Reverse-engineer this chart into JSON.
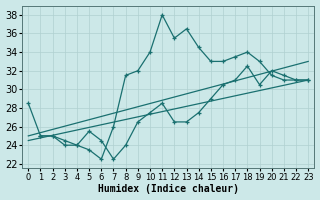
{
  "xlabel": "Humidex (Indice chaleur)",
  "xlim": [
    -0.5,
    23.5
  ],
  "ylim": [
    21.5,
    39.0
  ],
  "yticks": [
    22,
    24,
    26,
    28,
    30,
    32,
    34,
    36,
    38
  ],
  "xticks": [
    0,
    1,
    2,
    3,
    4,
    5,
    6,
    7,
    8,
    9,
    10,
    11,
    12,
    13,
    14,
    15,
    16,
    17,
    18,
    19,
    20,
    21,
    22,
    23
  ],
  "bg_color": "#cce8e8",
  "grid_color": "#b0d0d0",
  "line_color": "#1a7070",
  "line1_x": [
    0,
    1,
    2,
    3,
    4,
    5,
    6,
    7,
    8,
    9,
    10,
    11,
    12,
    13,
    14,
    15,
    16,
    17,
    18,
    19,
    20,
    21,
    22,
    23
  ],
  "line1_y": [
    28.5,
    25.0,
    25.0,
    24.0,
    24.0,
    23.5,
    22.5,
    26.0,
    31.5,
    32.0,
    34.0,
    38.0,
    35.5,
    36.5,
    34.5,
    33.0,
    33.0,
    33.5,
    34.0,
    33.0,
    31.5,
    31.0,
    31.0,
    31.0
  ],
  "line2_x": [
    1,
    2,
    3,
    4,
    5,
    6,
    7,
    8,
    9,
    10,
    11,
    12,
    13,
    14,
    15,
    16,
    17,
    18,
    19,
    20,
    21,
    22,
    23
  ],
  "line2_y": [
    25.0,
    25.0,
    24.5,
    24.0,
    25.5,
    24.5,
    22.5,
    24.0,
    26.5,
    27.5,
    28.5,
    26.5,
    26.5,
    27.5,
    29.0,
    30.5,
    31.0,
    32.5,
    30.5,
    32.0,
    31.5,
    31.0,
    31.0
  ],
  "line3_x": [
    0,
    23
  ],
  "line3_y": [
    25.0,
    33.0
  ],
  "line4_x": [
    0,
    23
  ],
  "line4_y": [
    24.5,
    31.0
  ],
  "tick_fontsize": 6,
  "xlabel_fontsize": 7
}
